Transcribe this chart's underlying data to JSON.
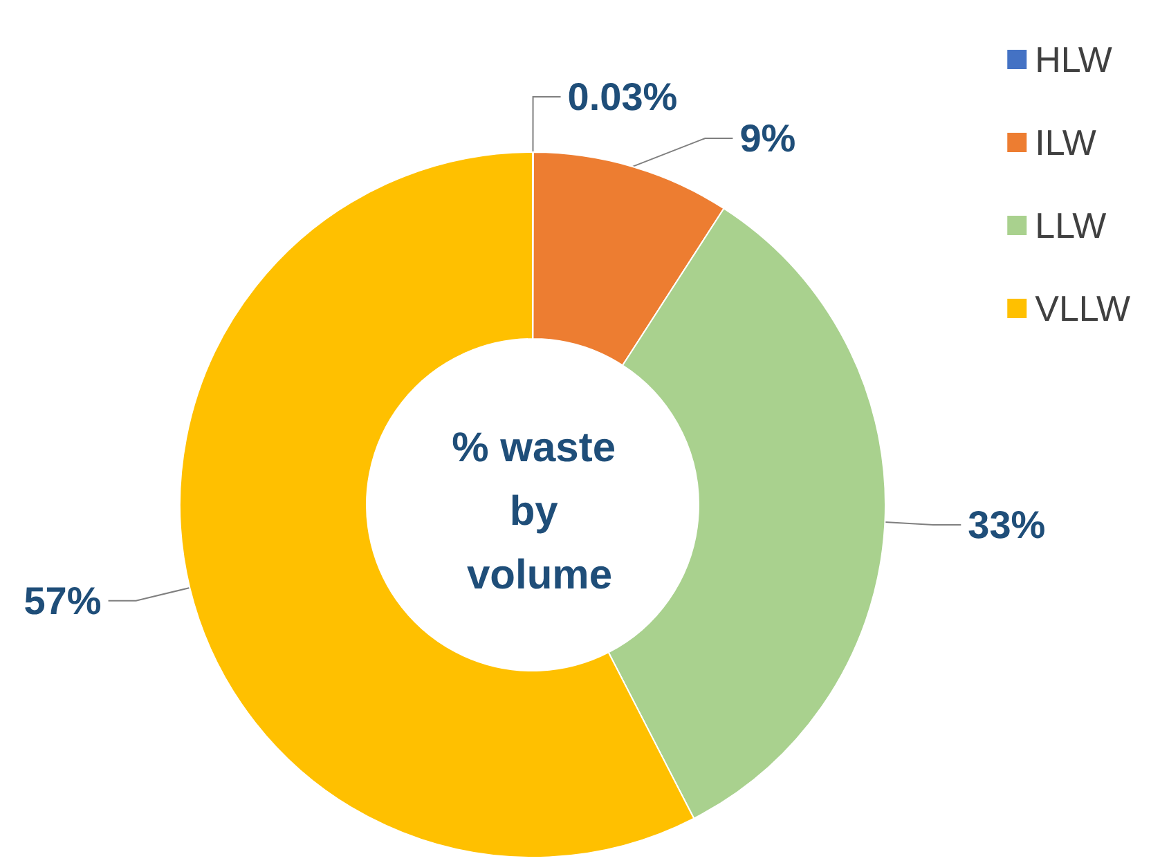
{
  "chart_data": {
    "type": "donut",
    "title": "% waste by volume",
    "categories": [
      "HLW",
      "ILW",
      "LLW",
      "VLLW"
    ],
    "values": [
      0.03,
      9,
      33,
      57
    ],
    "colors": [
      "#4472c4",
      "#ed7d31",
      "#a9d18e",
      "#ffc000"
    ],
    "value_labels": [
      "0.03%",
      "9%",
      "33%",
      "57%"
    ],
    "legend": "top right"
  }
}
